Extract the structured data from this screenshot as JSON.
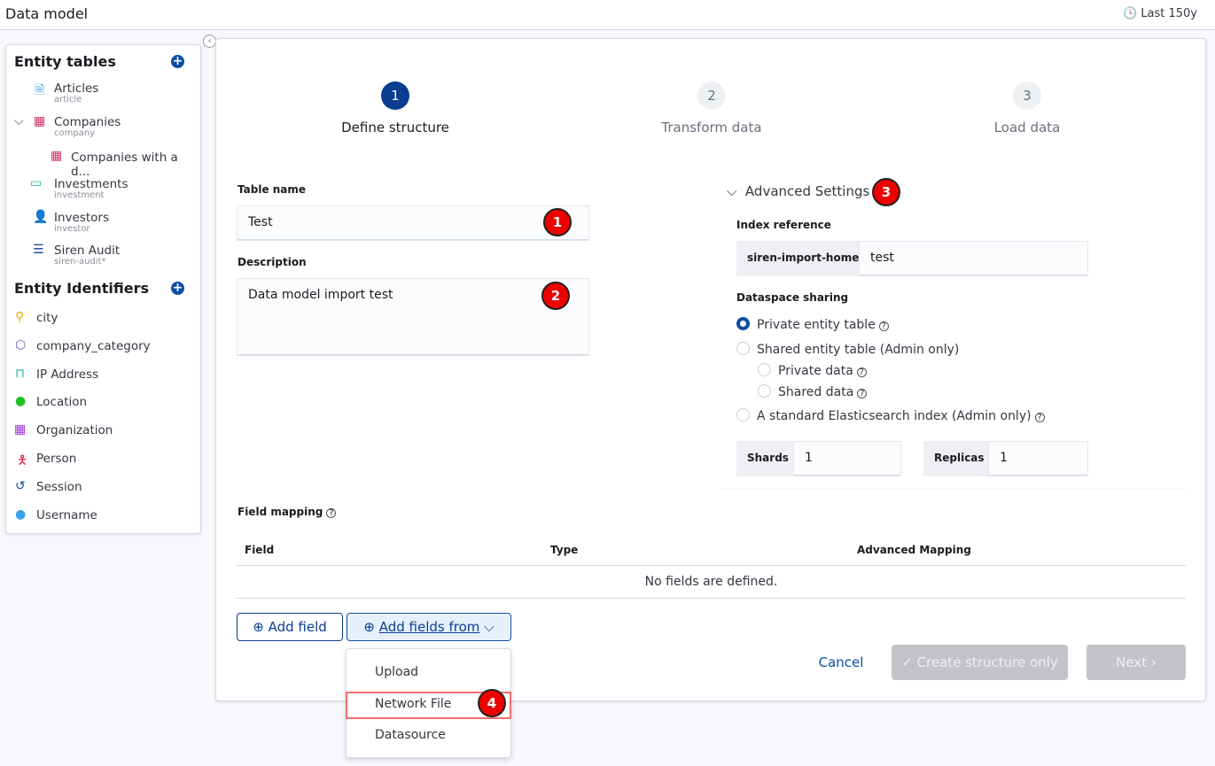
{
  "header": {
    "title": "Data model",
    "time_range": "Last 150y"
  },
  "sidebar": {
    "entity_tables_title": "Entity tables",
    "entity_tables": [
      {
        "label": "Articles",
        "sub": "article",
        "icon": "document-icon"
      },
      {
        "label": "Companies",
        "sub": "company",
        "icon": "building-icon"
      },
      {
        "label": "Companies with a d...",
        "sub": "",
        "icon": "building-icon"
      },
      {
        "label": "Investments",
        "sub": "investment",
        "icon": "money-icon"
      },
      {
        "label": "Investors",
        "sub": "investor",
        "icon": "user-icon"
      },
      {
        "label": "Siren Audit",
        "sub": "siren-audit*",
        "icon": "list-icon"
      }
    ],
    "entity_identifiers_title": "Entity Identifiers",
    "entity_identifiers": [
      {
        "label": "city",
        "icon": "map-pin-icon",
        "color": "#f5a700"
      },
      {
        "label": "company_category",
        "icon": "cube-icon",
        "color": "#6060d0"
      },
      {
        "label": "IP Address",
        "icon": "network-icon",
        "color": "#20b0a0"
      },
      {
        "label": "Location",
        "icon": "map-pin-icon",
        "color": "#20c020"
      },
      {
        "label": "Organization",
        "icon": "building-icon",
        "color": "#9b30d0"
      },
      {
        "label": "Person",
        "icon": "person-icon",
        "color": "#e0203a"
      },
      {
        "label": "Session",
        "icon": "history-icon",
        "color": "#0b4ea2"
      },
      {
        "label": "Username",
        "icon": "user-icon",
        "color": "#3aa0e8"
      }
    ]
  },
  "steps": [
    {
      "num": "1",
      "label": "Define structure"
    },
    {
      "num": "2",
      "label": "Transform data"
    },
    {
      "num": "3",
      "label": "Load data"
    }
  ],
  "form": {
    "table_name_label": "Table name",
    "table_name": "Test",
    "description_label": "Description",
    "description": "Data model import test",
    "advanced_title": "Advanced Settings",
    "index_ref_label": "Index reference",
    "index_prefix": "siren-import-home-",
    "index_value": "test",
    "sharing_label": "Dataspace sharing",
    "sharing_options": [
      "Private entity table",
      "Shared entity table (Admin only)",
      "Private data",
      "Shared data",
      "A standard Elasticsearch index (Admin only)"
    ],
    "shards_label": "Shards",
    "shards": "1",
    "replicas_label": "Replicas",
    "replicas": "1"
  },
  "field_mapping": {
    "title": "Field mapping",
    "columns": [
      "Field",
      "Type",
      "Advanced Mapping"
    ],
    "empty": "No fields are defined."
  },
  "buttons": {
    "add_field": "Add field",
    "add_fields_from": "Add fields from",
    "cancel": "Cancel",
    "create": "Create structure only",
    "next": "Next"
  },
  "menu": [
    "Upload",
    "Network File",
    "Datasource"
  ],
  "badges": [
    "1",
    "2",
    "3",
    "4"
  ],
  "colors": {
    "accent": "#0b4ea2",
    "badge": "#ee0000"
  }
}
